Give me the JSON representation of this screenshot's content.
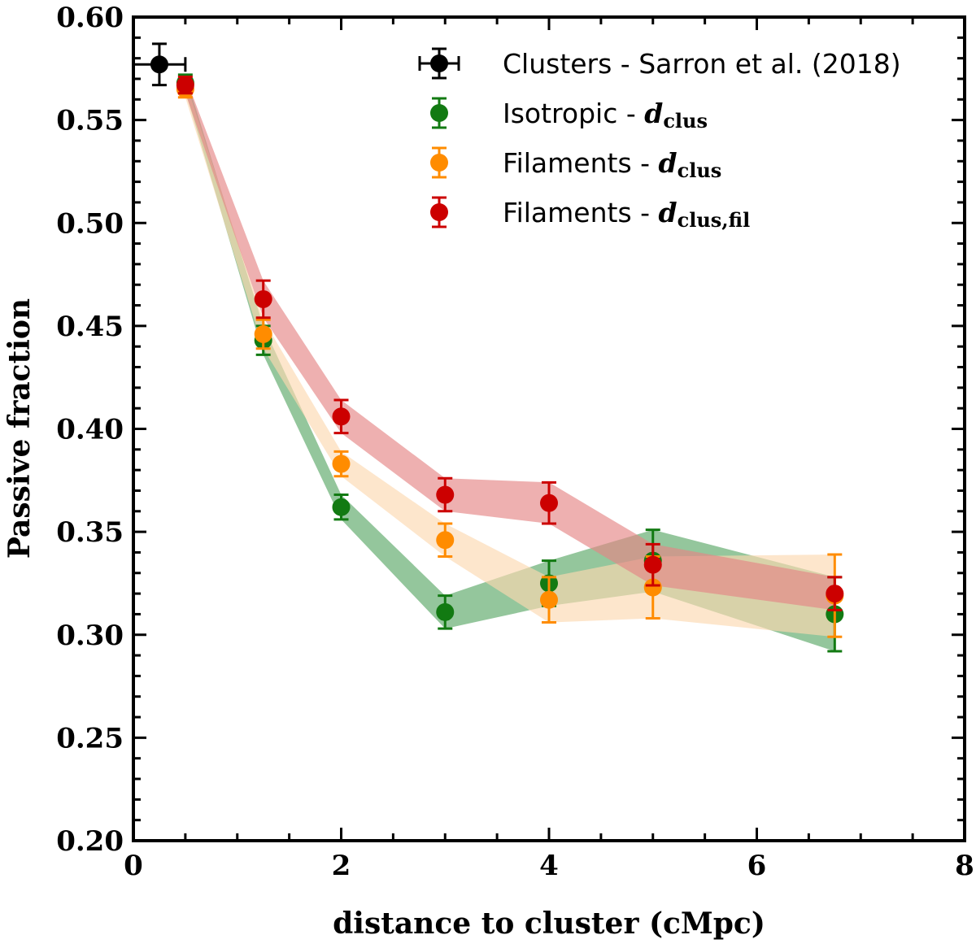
{
  "chart_data": {
    "type": "scatter",
    "title": "",
    "xlabel": "distance to cluster (cMpc)",
    "ylabel": "Passive fraction",
    "xlim": [
      0,
      8
    ],
    "ylim": [
      0.2,
      0.6
    ],
    "x_ticks": [
      0,
      2,
      4,
      6,
      8
    ],
    "x_tick_labels": [
      "0",
      "2",
      "4",
      "6",
      "8"
    ],
    "y_ticks": [
      0.2,
      0.25,
      0.3,
      0.35,
      0.4,
      0.45,
      0.5,
      0.55,
      0.6
    ],
    "y_tick_labels": [
      "0.20",
      "0.25",
      "0.30",
      "0.35",
      "0.40",
      "0.45",
      "0.50",
      "0.55",
      "0.60"
    ],
    "legend_position": "top-right",
    "series": [
      {
        "name": "Clusters",
        "label_text": "Clusters - Sarron et al. (2018)",
        "label_math": "",
        "label_sub": "",
        "color": "#000000",
        "x": [
          0.25
        ],
        "y": [
          0.577
        ],
        "yerr": [
          0.01
        ],
        "xerr": [
          0.25
        ],
        "band": null
      },
      {
        "name": "Isotropic",
        "label_text": "Isotropic - ",
        "label_math": "d",
        "label_sub": "clus",
        "color": "#127a12",
        "band_color": "#5aa867",
        "x": [
          0.5,
          1.25,
          2.0,
          3.0,
          4.0,
          5.0,
          6.75
        ],
        "y": [
          0.568,
          0.443,
          0.362,
          0.311,
          0.325,
          0.336,
          0.31
        ],
        "yerr": [
          0.004,
          0.007,
          0.006,
          0.008,
          0.011,
          0.015,
          0.018
        ],
        "band": {
          "upper": [
            0.572,
            0.45,
            0.368,
            0.319,
            0.336,
            0.351,
            0.328
          ],
          "lower": [
            0.564,
            0.436,
            0.356,
            0.303,
            0.314,
            0.321,
            0.292
          ]
        }
      },
      {
        "name": "Filaments",
        "label_text": "Filaments - ",
        "label_math": "d",
        "label_sub": "clus",
        "color": "#ff8c00",
        "band_color": "#fcd9b0",
        "x": [
          0.5,
          1.25,
          2.0,
          3.0,
          4.0,
          5.0,
          6.75
        ],
        "y": [
          0.565,
          0.446,
          0.383,
          0.346,
          0.317,
          0.323,
          0.319
        ],
        "yerr": [
          0.004,
          0.007,
          0.006,
          0.008,
          0.011,
          0.015,
          0.02
        ],
        "band": {
          "upper": [
            0.569,
            0.453,
            0.389,
            0.354,
            0.328,
            0.338,
            0.339
          ],
          "lower": [
            0.561,
            0.439,
            0.377,
            0.338,
            0.306,
            0.308,
            0.299
          ]
        }
      },
      {
        "name": "Filaments-fil",
        "label_text": "Filaments - ",
        "label_math": "d",
        "label_sub": "clus,fil",
        "color": "#cc0000",
        "band_color": "#e58585",
        "x": [
          0.5,
          1.25,
          2.0,
          3.0,
          4.0,
          5.0,
          6.75
        ],
        "y": [
          0.567,
          0.463,
          0.406,
          0.368,
          0.364,
          0.334,
          0.32
        ],
        "yerr": [
          0.004,
          0.009,
          0.008,
          0.008,
          0.01,
          0.01,
          0.008
        ],
        "band": {
          "upper": [
            0.571,
            0.472,
            0.414,
            0.376,
            0.374,
            0.344,
            0.328
          ],
          "lower": [
            0.563,
            0.454,
            0.398,
            0.36,
            0.354,
            0.324,
            0.312
          ]
        }
      }
    ]
  }
}
